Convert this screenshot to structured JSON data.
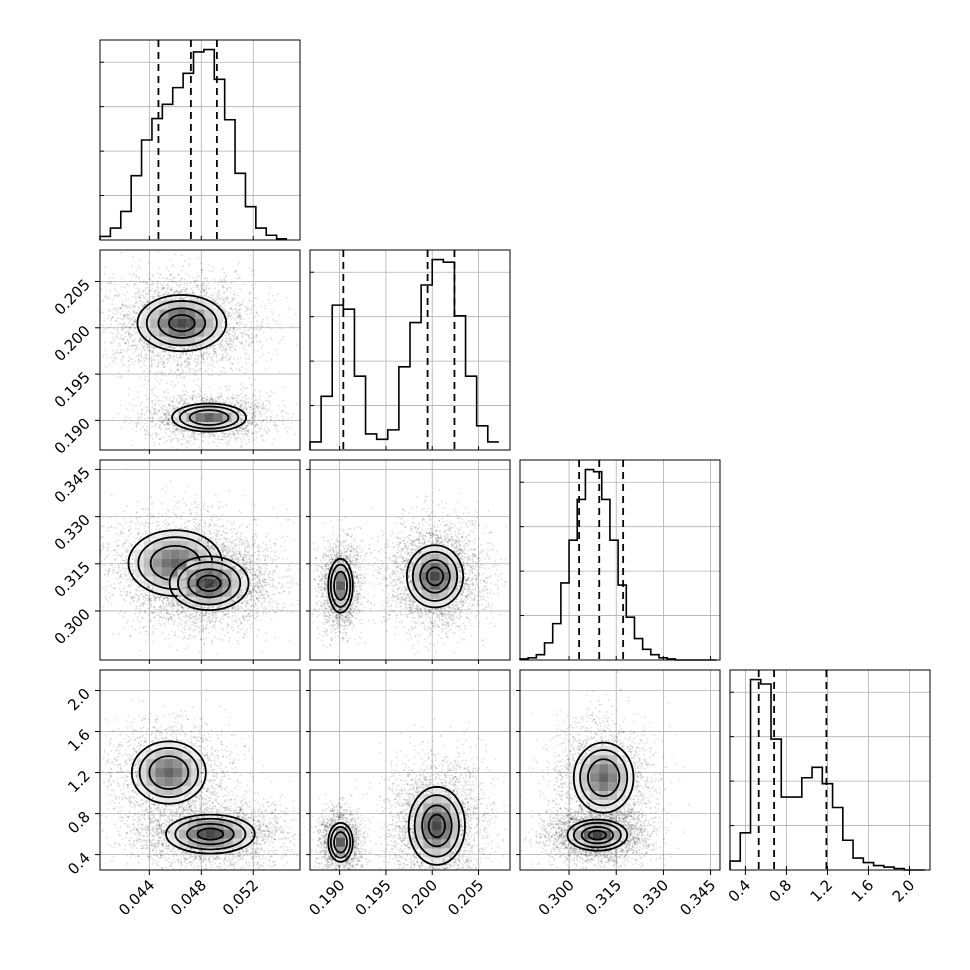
{
  "chart_data": {
    "type": "corner",
    "parameters": [
      {
        "ticks": [
          0.044,
          0.048,
          0.052
        ],
        "tick_labels": [
          "0.044",
          "0.048",
          "0.052"
        ],
        "range": [
          0.0402,
          0.0556
        ],
        "quantiles": [
          0.0447,
          0.0472,
          0.0492
        ],
        "hist_bins": [
          0.0402,
          0.041,
          0.0418,
          0.0426,
          0.0434,
          0.0442,
          0.045,
          0.0458,
          0.0466,
          0.0474,
          0.0482,
          0.049,
          0.0498,
          0.0506,
          0.0514,
          0.0522,
          0.053,
          0.0538,
          0.0546
        ],
        "hist_counts": [
          3,
          10,
          24,
          54,
          84,
          102,
          114,
          128,
          140,
          158,
          160,
          135,
          101,
          56,
          28,
          10,
          4,
          1
        ]
      },
      {
        "ticks": [
          0.19,
          0.195,
          0.2,
          0.205
        ],
        "tick_labels": [
          "0.190",
          "0.195",
          "0.200",
          "0.205"
        ],
        "range": [
          0.1868,
          0.2084
        ],
        "quantiles": [
          0.1904,
          0.1995,
          0.2024
        ],
        "hist_bins": [
          0.1868,
          0.188,
          0.1892,
          0.1904,
          0.1916,
          0.1928,
          0.194,
          0.1952,
          0.1964,
          0.1976,
          0.1988,
          0.2,
          0.2012,
          0.2024,
          0.2036,
          0.2048,
          0.206,
          0.2072,
          0.2084
        ],
        "hist_counts": [
          6,
          40,
          108,
          105,
          55,
          12,
          8,
          15,
          62,
          95,
          123,
          142,
          140,
          100,
          55,
          18,
          6
        ],
        "hist_counts_note": ""
      },
      {
        "ticks": [
          0.3,
          0.315,
          0.33,
          0.345
        ],
        "tick_labels": [
          "0.300",
          "0.315",
          "0.330",
          "0.345"
        ],
        "range": [
          0.2844,
          0.348
        ],
        "quantiles": [
          0.3032,
          0.3096,
          0.3172
        ],
        "hist_bins": [
          0.2844,
          0.287,
          0.2896,
          0.2922,
          0.2948,
          0.2974,
          0.3,
          0.3026,
          0.3052,
          0.3078,
          0.3104,
          0.313,
          0.3156,
          0.3182,
          0.3208,
          0.3234,
          0.326,
          0.3286,
          0.3312,
          0.3338,
          0.3364,
          0.339,
          0.3416,
          0.3442,
          0.3468
        ],
        "hist_counts": [
          1,
          2,
          5,
          16,
          34,
          72,
          112,
          150,
          178,
          176,
          150,
          112,
          70,
          40,
          20,
          10,
          5,
          2,
          1,
          0,
          0,
          0,
          0,
          0
        ]
      },
      {
        "ticks": [
          0.4,
          0.8,
          1.2,
          1.6,
          2.0
        ],
        "tick_labels": [
          "0.4",
          "0.8",
          "1.2",
          "1.6",
          "2.0"
        ],
        "range": [
          0.25,
          2.2
        ],
        "quantiles": [
          0.53,
          0.68,
          1.19
        ],
        "hist_bins": [
          0.25,
          0.35,
          0.45,
          0.55,
          0.65,
          0.75,
          0.85,
          0.95,
          1.05,
          1.15,
          1.25,
          1.35,
          1.45,
          1.55,
          1.65,
          1.75,
          1.85,
          1.95,
          2.05,
          2.15
        ],
        "hist_counts": [
          6,
          25,
          128,
          125,
          88,
          49,
          49,
          62,
          69,
          58,
          42,
          20,
          8,
          5,
          3,
          2,
          1,
          0,
          0
        ]
      }
    ],
    "joint": {
      "modes_note": "two clusters visible in every pair involving parameter 2",
      "pairs": [
        {
          "row": 1,
          "col": 0,
          "clusters": [
            {
              "x": 0.0465,
              "y": 0.2005,
              "sx": 0.0018,
              "sy": 0.0016,
              "w": 0.62
            },
            {
              "x": 0.0486,
              "y": 0.1903,
              "sx": 0.0015,
              "sy": 0.0008,
              "w": 0.38
            }
          ]
        },
        {
          "row": 2,
          "col": 0,
          "clusters": [
            {
              "x": 0.046,
              "y": 0.3152,
              "sx": 0.0019,
              "sy": 0.0055,
              "w": 0.38
            },
            {
              "x": 0.0486,
              "y": 0.3088,
              "sx": 0.0016,
              "sy": 0.0045,
              "w": 0.62
            }
          ]
        },
        {
          "row": 2,
          "col": 1,
          "clusters": [
            {
              "x": 0.1901,
              "y": 0.308,
              "sx": 0.0007,
              "sy": 0.0045,
              "w": 0.38
            },
            {
              "x": 0.2003,
              "y": 0.311,
              "sx": 0.0016,
              "sy": 0.0052,
              "w": 0.62
            }
          ]
        },
        {
          "row": 3,
          "col": 0,
          "clusters": [
            {
              "x": 0.0455,
              "y": 1.2,
              "sx": 0.0015,
              "sy": 0.16,
              "w": 0.38
            },
            {
              "x": 0.0487,
              "y": 0.6,
              "sx": 0.0018,
              "sy": 0.1,
              "w": 0.62
            }
          ]
        },
        {
          "row": 3,
          "col": 1,
          "clusters": [
            {
              "x": 0.1901,
              "y": 0.52,
              "sx": 0.0007,
              "sy": 0.1,
              "w": 0.38
            },
            {
              "x": 0.2005,
              "y": 0.68,
              "sx": 0.0016,
              "sy": 0.2,
              "w": 0.62
            }
          ]
        },
        {
          "row": 3,
          "col": 2,
          "clusters": [
            {
              "x": 0.311,
              "y": 1.15,
              "sx": 0.005,
              "sy": 0.18,
              "w": 0.38
            },
            {
              "x": 0.309,
              "y": 0.59,
              "sx": 0.005,
              "sy": 0.08,
              "w": 0.62
            }
          ]
        }
      ]
    },
    "grid": true
  }
}
